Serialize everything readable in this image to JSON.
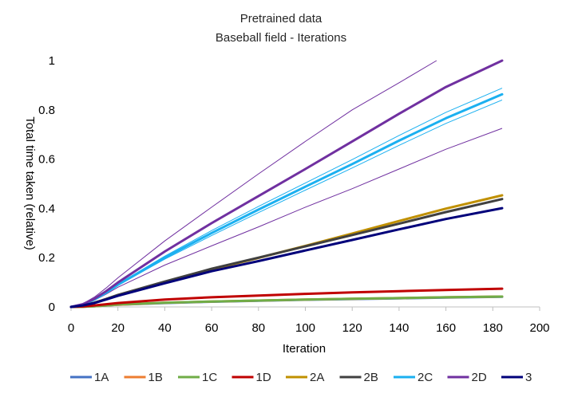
{
  "chart_data": {
    "type": "line",
    "title": "Pretrained data",
    "subtitle": "Baseball field - Iterations",
    "xlabel": "Iteration",
    "ylabel": "Total time taken (relative)",
    "xlim": [
      0,
      200
    ],
    "ylim": [
      0,
      1
    ],
    "xticks": [
      "0",
      "20",
      "40",
      "60",
      "80",
      "100",
      "120",
      "140",
      "160",
      "180",
      "200"
    ],
    "yticks": [
      "0",
      "0.2",
      "0.4",
      "0.6",
      "0.8",
      "1"
    ],
    "grid": false,
    "legend_position": "bottom",
    "series": [
      {
        "name": "1A",
        "color": "#4472C4",
        "x": [
          0,
          5,
          10,
          15,
          20,
          40,
          60,
          80,
          100,
          120,
          140,
          160,
          184
        ],
        "y": [
          0,
          0.001,
          0.003,
          0.006,
          0.009,
          0.016,
          0.021,
          0.025,
          0.029,
          0.032,
          0.035,
          0.038,
          0.041
        ]
      },
      {
        "name": "1B",
        "color": "#ED7D31",
        "x": [
          0,
          5,
          10,
          15,
          20,
          40,
          60,
          80,
          100,
          120,
          140,
          160,
          184
        ],
        "y": [
          0,
          0.001,
          0.003,
          0.006,
          0.009,
          0.017,
          0.022,
          0.026,
          0.03,
          0.033,
          0.036,
          0.039,
          0.042
        ]
      },
      {
        "name": "1C",
        "color": "#70AD47",
        "x": [
          0,
          5,
          10,
          15,
          20,
          40,
          60,
          80,
          100,
          120,
          140,
          160,
          184
        ],
        "y": [
          0,
          0.001,
          0.003,
          0.006,
          0.01,
          0.017,
          0.022,
          0.026,
          0.03,
          0.033,
          0.036,
          0.039,
          0.042
        ]
      },
      {
        "name": "1D",
        "color": "#C00000",
        "x": [
          0,
          5,
          10,
          15,
          20,
          40,
          60,
          80,
          100,
          120,
          140,
          160,
          184
        ],
        "y": [
          0,
          0.002,
          0.006,
          0.011,
          0.016,
          0.03,
          0.039,
          0.046,
          0.053,
          0.059,
          0.064,
          0.069,
          0.074
        ]
      },
      {
        "name": "2A",
        "color": "#C09000",
        "x": [
          0,
          5,
          10,
          15,
          20,
          40,
          60,
          80,
          100,
          120,
          140,
          160,
          184
        ],
        "y": [
          0,
          0.006,
          0.017,
          0.032,
          0.048,
          0.101,
          0.152,
          0.199,
          0.248,
          0.298,
          0.349,
          0.399,
          0.453
        ]
      },
      {
        "name": "2B",
        "color": "#404040",
        "x": [
          0,
          5,
          10,
          15,
          20,
          40,
          60,
          80,
          100,
          120,
          140,
          160,
          184
        ],
        "y": [
          0,
          0.006,
          0.017,
          0.032,
          0.049,
          0.103,
          0.155,
          0.2,
          0.246,
          0.292,
          0.338,
          0.385,
          0.438
        ]
      },
      {
        "name": "2C",
        "color": "#1BB0F0",
        "x": [
          0,
          5,
          10,
          15,
          20,
          40,
          60,
          80,
          100,
          120,
          140,
          160,
          184
        ],
        "y": [
          0,
          0.01,
          0.03,
          0.058,
          0.09,
          0.2,
          0.3,
          0.395,
          0.488,
          0.58,
          0.675,
          0.766,
          0.863
        ]
      },
      {
        "name": "2D",
        "color": "#7030A0",
        "x": [
          0,
          5,
          10,
          15,
          20,
          40,
          60,
          80,
          100,
          120,
          140,
          160,
          184
        ],
        "y": [
          0,
          0.011,
          0.033,
          0.064,
          0.099,
          0.225,
          0.34,
          0.45,
          0.56,
          0.672,
          0.784,
          0.893,
          1.0
        ]
      },
      {
        "name": "3",
        "color": "#00007A",
        "x": [
          0,
          5,
          10,
          15,
          20,
          40,
          60,
          80,
          100,
          120,
          140,
          160,
          184
        ],
        "y": [
          0,
          0.006,
          0.016,
          0.03,
          0.045,
          0.096,
          0.145,
          0.186,
          0.229,
          0.272,
          0.315,
          0.357,
          0.401
        ]
      }
    ],
    "envelopes": [
      {
        "color": "#7030A0",
        "x": [
          0,
          5,
          10,
          15,
          20,
          40,
          60,
          80,
          100,
          120,
          140,
          156
        ],
        "y": [
          0,
          0.013,
          0.04,
          0.077,
          0.118,
          0.268,
          0.405,
          0.54,
          0.672,
          0.8,
          0.91,
          1.0
        ]
      },
      {
        "color": "#7030A0",
        "x": [
          0,
          5,
          10,
          15,
          20,
          40,
          60,
          80,
          100,
          120,
          140,
          160,
          184
        ],
        "y": [
          0,
          0.009,
          0.027,
          0.052,
          0.08,
          0.17,
          0.248,
          0.325,
          0.405,
          0.48,
          0.56,
          0.64,
          0.725
        ]
      },
      {
        "color": "#1BB0F0",
        "x": [
          0,
          5,
          10,
          15,
          20,
          40,
          60,
          80,
          100,
          120,
          140,
          160,
          184
        ],
        "y": [
          0,
          0.011,
          0.031,
          0.06,
          0.093,
          0.206,
          0.31,
          0.408,
          0.503,
          0.598,
          0.696,
          0.79,
          0.888
        ]
      },
      {
        "color": "#1BB0F0",
        "x": [
          0,
          5,
          10,
          15,
          20,
          40,
          60,
          80,
          100,
          120,
          140,
          160,
          184
        ],
        "y": [
          0,
          0.01,
          0.029,
          0.056,
          0.087,
          0.194,
          0.29,
          0.383,
          0.474,
          0.564,
          0.656,
          0.745,
          0.84
        ]
      }
    ]
  }
}
